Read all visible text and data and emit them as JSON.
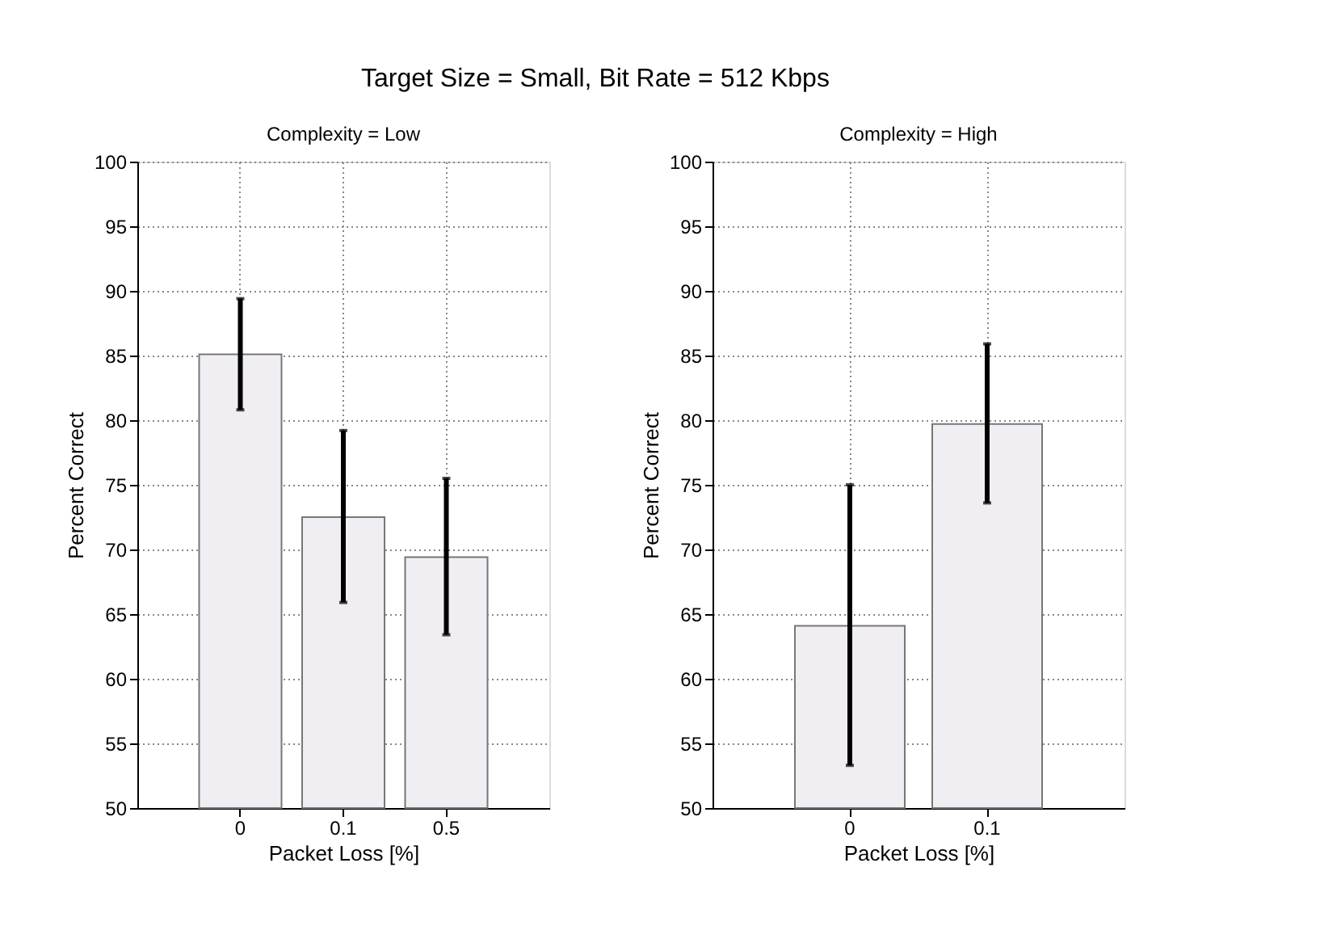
{
  "chart_data": [
    {
      "type": "bar",
      "title": "Target Size = Small, Bit Rate = 512 Kbps",
      "subtitle": "Complexity = Low",
      "xlabel": "Packet Loss [%]",
      "ylabel": "Percent Correct",
      "categories": [
        "0",
        "0.1",
        "0.5"
      ],
      "values": [
        85.1,
        72.5,
        69.4
      ],
      "errors": [
        [
          80.8,
          89.4
        ],
        [
          65.9,
          79.2
        ],
        [
          63.4,
          75.5
        ]
      ],
      "color": "#f1eef3",
      "ylim": [
        50,
        100
      ],
      "yticks": [
        50,
        55,
        60,
        65,
        70,
        75,
        80,
        85,
        90,
        95,
        100
      ],
      "grid": true
    },
    {
      "type": "bar",
      "subtitle": "Complexity = High",
      "xlabel": "Packet Loss [%]",
      "ylabel": "Percent Correct",
      "categories": [
        "0",
        "0.1"
      ],
      "values": [
        64.1,
        79.7
      ],
      "errors": [
        [
          53.3,
          75.0
        ],
        [
          73.6,
          85.9
        ]
      ],
      "color": "#f1eef3",
      "ylim": [
        50,
        100
      ],
      "yticks": [
        50,
        55,
        60,
        65,
        70,
        75,
        80,
        85,
        90,
        95,
        100
      ],
      "grid": true
    }
  ]
}
